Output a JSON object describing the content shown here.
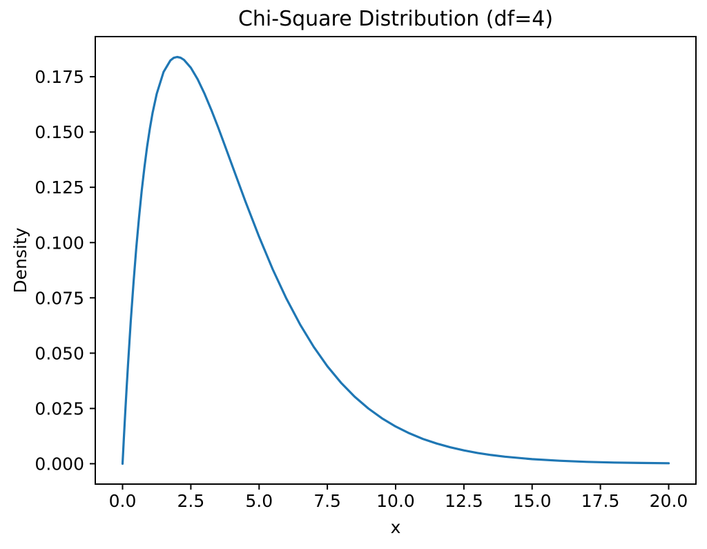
{
  "figure": {
    "background": "#ffffff",
    "text_color": "#000000",
    "spine_color": "#000000"
  },
  "chart_data": {
    "type": "line",
    "title": "Chi-Square Distribution (df=4)",
    "xlabel": "x",
    "ylabel": "Density",
    "grid": false,
    "legend": false,
    "line_color": "#1f77b4",
    "xlim": [
      -1,
      21
    ],
    "ylim": [
      -0.009197,
      0.193137
    ],
    "xticks": {
      "values": [
        0,
        2.5,
        5,
        7.5,
        10,
        12.5,
        15,
        17.5,
        20
      ],
      "labels": [
        "0.0",
        "2.5",
        "5.0",
        "7.5",
        "10.0",
        "12.5",
        "15.0",
        "17.5",
        "20.0"
      ]
    },
    "yticks": {
      "values": [
        0,
        0.025,
        0.05,
        0.075,
        0.1,
        0.125,
        0.15,
        0.175
      ],
      "labels": [
        "0.000",
        "0.025",
        "0.050",
        "0.075",
        "0.100",
        "0.125",
        "0.150",
        "0.175"
      ]
    },
    "series": [
      {
        "x": [
          0,
          0.05,
          0.1,
          0.15,
          0.2,
          0.3,
          0.4,
          0.5,
          0.6,
          0.7,
          0.8,
          0.9,
          1.0,
          1.1,
          1.25,
          1.5,
          1.75,
          1.875,
          2.0,
          2.125,
          2.25,
          2.5,
          2.75,
          3.0,
          3.25,
          3.5,
          3.75,
          4.0,
          4.5,
          5.0,
          5.5,
          6.0,
          6.5,
          7.0,
          7.5,
          8.0,
          8.5,
          9.0,
          9.5,
          10.0,
          10.5,
          11.0,
          11.5,
          12.0,
          12.5,
          13.0,
          13.5,
          14.0,
          15.0,
          16.0,
          17.0,
          18.0,
          19.0,
          20.0
        ],
        "y": [
          0,
          0.012191,
          0.023781,
          0.03479,
          0.045242,
          0.064553,
          0.081873,
          0.09735,
          0.111123,
          0.12332,
          0.134064,
          0.143466,
          0.151633,
          0.158661,
          0.167269,
          0.177138,
          0.182377,
          0.183565,
          0.18394,
          0.183596,
          0.182617,
          0.179066,
          0.173827,
          0.167348,
          0.159991,
          0.152052,
          0.14377,
          0.135335,
          0.118574,
          0.102606,
          0.087901,
          0.074681,
          0.063008,
          0.052845,
          0.044096,
          0.036631,
          0.030311,
          0.024995,
          0.020548,
          0.016845,
          0.013775,
          0.011239,
          0.009151,
          0.007436,
          0.006033,
          0.004886,
          0.003952,
          0.003192,
          0.002074,
          0.001342,
          0.000865,
          0.000555,
          0.000356,
          0.000227
        ]
      }
    ]
  }
}
